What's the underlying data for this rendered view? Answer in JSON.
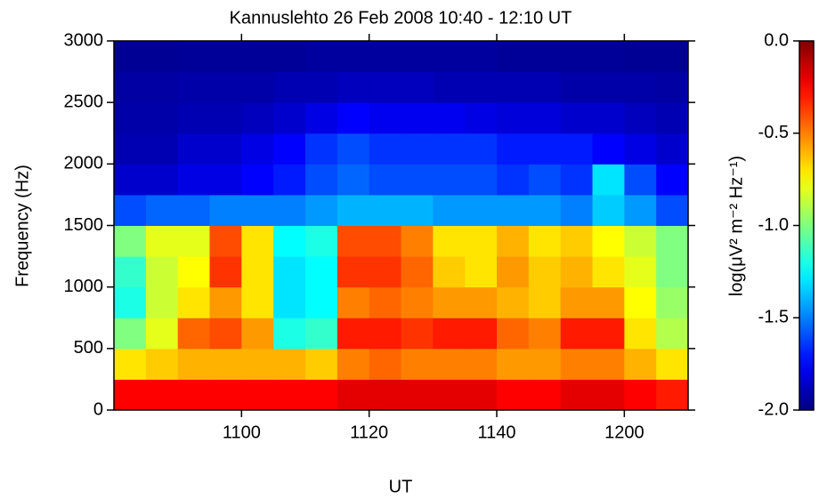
{
  "chart_data": {
    "type": "heatmap",
    "title": "Kannuslehto 26 Feb 2008 10:40 - 12:10 UT",
    "x_label": "UT",
    "y_label": "Frequency (Hz)",
    "colorbar_label": "log(μV² m⁻² Hz⁻¹)",
    "x": [
      640,
      645,
      650,
      655,
      660,
      665,
      670,
      675,
      680,
      685,
      690,
      695,
      700,
      705,
      710,
      715,
      720,
      725,
      730
    ],
    "y": [
      0,
      250,
      500,
      750,
      1000,
      1250,
      1500,
      1750,
      2000,
      2250,
      2500,
      2750,
      3000
    ],
    "z": [
      [
        -0.25,
        -0.25,
        -0.25,
        -0.25,
        -0.25,
        -0.25,
        -0.25,
        -0.2,
        -0.2,
        -0.2,
        -0.2,
        -0.2,
        -0.25,
        -0.25,
        -0.2,
        -0.2,
        -0.25,
        -0.3
      ],
      [
        -0.7,
        -0.65,
        -0.6,
        -0.6,
        -0.6,
        -0.6,
        -0.65,
        -0.5,
        -0.45,
        -0.5,
        -0.5,
        -0.5,
        -0.55,
        -0.55,
        -0.5,
        -0.5,
        -0.6,
        -0.7
      ],
      [
        -1.0,
        -0.8,
        -0.45,
        -0.4,
        -0.55,
        -1.2,
        -1.15,
        -0.3,
        -0.3,
        -0.35,
        -0.3,
        -0.3,
        -0.45,
        -0.5,
        -0.3,
        -0.3,
        -0.7,
        -0.9
      ],
      [
        -1.2,
        -0.85,
        -0.7,
        -0.55,
        -0.7,
        -1.3,
        -1.25,
        -0.5,
        -0.45,
        -0.5,
        -0.55,
        -0.55,
        -0.6,
        -0.65,
        -0.55,
        -0.55,
        -0.75,
        -0.95
      ],
      [
        -1.15,
        -0.85,
        -0.75,
        -0.35,
        -0.7,
        -1.3,
        -1.25,
        -0.35,
        -0.35,
        -0.45,
        -0.65,
        -0.7,
        -0.55,
        -0.65,
        -0.6,
        -0.7,
        -0.8,
        -1.0
      ],
      [
        -1.0,
        -0.8,
        -0.8,
        -0.4,
        -0.7,
        -1.25,
        -1.2,
        -0.4,
        -0.4,
        -0.5,
        -0.7,
        -0.7,
        -0.6,
        -0.7,
        -0.65,
        -0.75,
        -0.85,
        -1.0
      ],
      [
        -1.6,
        -1.55,
        -1.55,
        -1.5,
        -1.5,
        -1.5,
        -1.45,
        -1.4,
        -1.4,
        -1.4,
        -1.45,
        -1.45,
        -1.45,
        -1.45,
        -1.5,
        -1.35,
        -1.45,
        -1.6
      ],
      [
        -1.85,
        -1.85,
        -1.8,
        -1.8,
        -1.75,
        -1.7,
        -1.6,
        -1.55,
        -1.6,
        -1.6,
        -1.6,
        -1.6,
        -1.65,
        -1.6,
        -1.65,
        -1.3,
        -1.6,
        -1.75
      ],
      [
        -1.9,
        -1.9,
        -1.85,
        -1.85,
        -1.8,
        -1.75,
        -1.65,
        -1.6,
        -1.65,
        -1.65,
        -1.65,
        -1.65,
        -1.7,
        -1.7,
        -1.7,
        -1.75,
        -1.8,
        -1.85
      ],
      [
        -1.92,
        -1.92,
        -1.9,
        -1.9,
        -1.88,
        -1.85,
        -1.8,
        -1.75,
        -1.78,
        -1.78,
        -1.78,
        -1.8,
        -1.82,
        -1.82,
        -1.85,
        -1.85,
        -1.88,
        -1.9
      ],
      [
        -1.93,
        -1.93,
        -1.92,
        -1.92,
        -1.92,
        -1.9,
        -1.9,
        -1.88,
        -1.88,
        -1.88,
        -1.9,
        -1.9,
        -1.9,
        -1.9,
        -1.92,
        -1.92,
        -1.92,
        -1.93
      ],
      [
        -1.96,
        -1.96,
        -1.95,
        -1.95,
        -1.95,
        -1.95,
        -1.94,
        -1.94,
        -1.94,
        -1.94,
        -1.94,
        -1.94,
        -1.95,
        -1.95,
        -1.95,
        -1.95,
        -1.96,
        -1.96
      ]
    ],
    "xlim": [
      640,
      730
    ],
    "ylim": [
      0,
      3000
    ],
    "clim": [
      -2,
      0
    ],
    "xticks": [
      {
        "value": 660,
        "label": "1100"
      },
      {
        "value": 680,
        "label": "1120"
      },
      {
        "value": 700,
        "label": "1140"
      },
      {
        "value": 720,
        "label": "1200"
      }
    ],
    "yticks": [
      0,
      500,
      1000,
      1500,
      2000,
      2500,
      3000
    ],
    "cticks": [
      {
        "value": 0,
        "label": "0.0"
      },
      {
        "value": -0.5,
        "label": "-0.5"
      },
      {
        "value": -1,
        "label": "-1.0"
      },
      {
        "value": -1.5,
        "label": "-1.5"
      },
      {
        "value": -2,
        "label": "-2.0"
      }
    ],
    "colormap": "jet"
  }
}
